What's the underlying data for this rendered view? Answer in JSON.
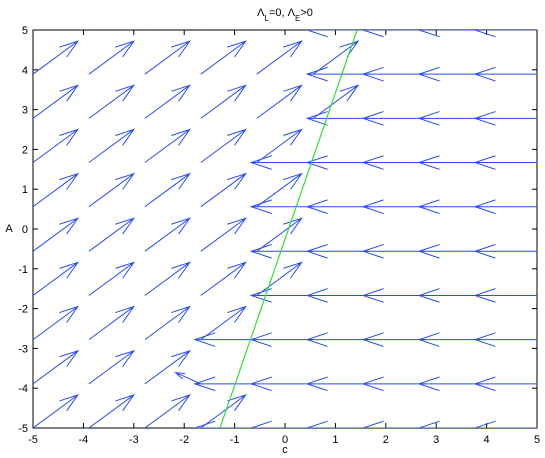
{
  "chart_data": {
    "type": "quiver",
    "title": [
      {
        "text": "Λ"
      },
      {
        "text": "L",
        "sub": true
      },
      {
        "text": "=0, Λ"
      },
      {
        "text": "E",
        "sub": true
      },
      {
        "text": ">0"
      }
    ],
    "xlabel": "c",
    "ylabel": "A",
    "x": [
      -5,
      -3.89,
      -2.78,
      -1.67,
      -0.56,
      0.56,
      1.67,
      2.78,
      3.89,
      5
    ],
    "y": [
      -5,
      -3.89,
      -2.78,
      -1.67,
      -0.56,
      0.56,
      1.67,
      2.78,
      3.89,
      5
    ],
    "u": [
      [
        0.89,
        0.89,
        0.89,
        0.89,
        -1.23,
        -1.23,
        -1.23,
        -1.23,
        -1.23,
        -1.23
      ],
      [
        0.89,
        0.89,
        0.89,
        -0.5,
        -1.23,
        -1.23,
        -1.23,
        -1.23,
        -1.23,
        -1.23
      ],
      [
        0.89,
        0.89,
        0.89,
        0.89,
        -1.23,
        -1.23,
        -1.23,
        -1.23,
        -1.23,
        -1.23
      ],
      [
        0.89,
        0.89,
        0.89,
        0.89,
        0.89,
        -1.23,
        -1.23,
        -1.23,
        -1.23,
        -1.23
      ],
      [
        0.89,
        0.89,
        0.89,
        0.89,
        0.89,
        -1.23,
        -1.23,
        -1.23,
        -1.23,
        -1.23
      ],
      [
        0.89,
        0.89,
        0.89,
        0.89,
        0.89,
        -1.23,
        -1.23,
        -1.23,
        -1.23,
        -1.23
      ],
      [
        0.89,
        0.89,
        0.89,
        0.89,
        0.89,
        -1.23,
        -1.23,
        -1.23,
        -1.23,
        -1.23
      ],
      [
        0.89,
        0.89,
        0.89,
        0.89,
        0.89,
        0.89,
        -1.23,
        -1.23,
        -1.23,
        -1.23
      ],
      [
        0.89,
        0.89,
        0.89,
        0.89,
        0.89,
        0.89,
        -1.23,
        -1.23,
        -1.23,
        -1.23
      ],
      [
        0.89,
        0.89,
        0.89,
        0.89,
        0.89,
        0.89,
        -1.23,
        -1.23,
        -1.23,
        -1.23
      ]
    ],
    "v": [
      [
        0.83,
        0.83,
        0.83,
        0.83,
        0,
        0,
        0,
        0,
        0,
        0
      ],
      [
        0.83,
        0.83,
        0.83,
        0.28,
        0,
        0,
        0,
        0,
        0,
        0
      ],
      [
        0.83,
        0.83,
        0.83,
        0.83,
        0,
        0,
        0,
        0,
        0,
        0
      ],
      [
        0.83,
        0.83,
        0.83,
        0.83,
        0.83,
        0,
        0,
        0,
        0,
        0
      ],
      [
        0.83,
        0.83,
        0.83,
        0.83,
        0.83,
        0,
        0,
        0,
        0,
        0
      ],
      [
        0.83,
        0.83,
        0.83,
        0.83,
        0.83,
        0,
        0,
        0,
        0,
        0
      ],
      [
        0.83,
        0.83,
        0.83,
        0.83,
        0.83,
        0,
        0,
        0,
        0,
        0
      ],
      [
        0.83,
        0.83,
        0.83,
        0.83,
        0.83,
        0.83,
        0,
        0,
        0,
        0
      ],
      [
        0.83,
        0.83,
        0.83,
        0.83,
        0.83,
        0.83,
        0,
        0,
        0,
        0
      ],
      [
        0.83,
        0.83,
        0.83,
        0.83,
        0.83,
        0.83,
        0,
        0,
        0,
        0
      ]
    ],
    "color": "#2a4cf0",
    "line": {
      "x": [
        -1.29,
        1.43
      ],
      "y": [
        -5,
        5
      ],
      "color": "#33dd33"
    },
    "xlim": [
      -5,
      5
    ],
    "ylim": [
      -5,
      5
    ],
    "xticks": [
      -5,
      -4,
      -3,
      -2,
      -1,
      0,
      1,
      2,
      3,
      4,
      5
    ],
    "yticks": [
      -5,
      -4,
      -3,
      -2,
      -1,
      0,
      1,
      2,
      3,
      4,
      5
    ]
  }
}
